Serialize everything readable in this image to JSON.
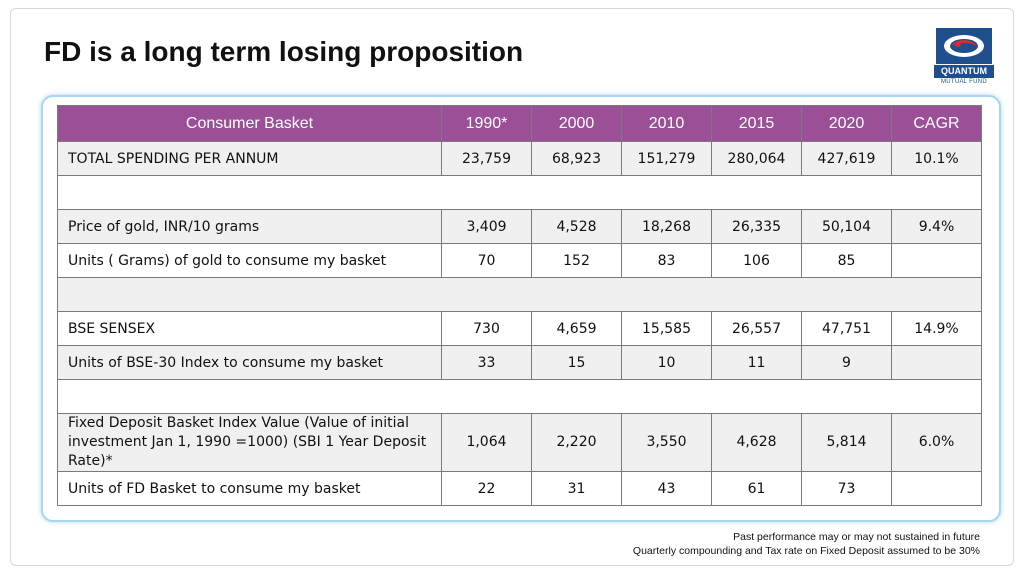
{
  "slide": {
    "title": "FD is a long term losing proposition"
  },
  "logo": {
    "word": "QUANTUM",
    "sub": "MUTUAL FUND"
  },
  "table": {
    "headers": [
      "Consumer Basket",
      "1990*",
      "2000",
      "2010",
      "2015",
      "2020",
      "CAGR"
    ],
    "rows": [
      {
        "label": "TOTAL SPENDING PER ANNUM",
        "values": [
          "23,759",
          "68,923",
          "151,279",
          "280,064",
          "427,619",
          "10.1%"
        ]
      },
      {
        "label": "",
        "values": []
      },
      {
        "label": "Price of gold, INR/10 grams",
        "values": [
          "3,409",
          "4,528",
          "18,268",
          "26,335",
          "50,104",
          "9.4%"
        ]
      },
      {
        "label": "Units ( Grams) of gold to consume my basket",
        "values": [
          "70",
          "152",
          "83",
          "106",
          "85",
          ""
        ]
      },
      {
        "label": "",
        "values": []
      },
      {
        "label": "BSE SENSEX",
        "values": [
          "730",
          "4,659",
          "15,585",
          "26,557",
          "47,751",
          "14.9%"
        ]
      },
      {
        "label": "Units  of BSE-30 Index to consume my basket",
        "values": [
          "33",
          "15",
          "10",
          "11",
          "9",
          ""
        ]
      },
      {
        "label": "",
        "values": []
      },
      {
        "label": "Fixed Deposit Basket Index Value (Value of initial investment Jan 1, 1990 =1000) (SBI 1 Year Deposit Rate)*",
        "values": [
          "1,064",
          "2,220",
          "3,550",
          "4,628",
          "5,814",
          "6.0%"
        ]
      },
      {
        "label": "Units  of FD Basket to consume my basket",
        "values": [
          "22",
          "31",
          "43",
          "61",
          "73",
          ""
        ]
      }
    ]
  },
  "footnotes": {
    "line1": "Past performance may or may not sustained in future",
    "line2": "Quarterly compounding and Tax rate on Fixed Deposit assumed to be 30%"
  },
  "colors": {
    "header_bg": "#9b4f96",
    "shaded_row": "#f0f0f0",
    "card_border": "#a7d6ef",
    "logo_blue": "#1f4e8c",
    "logo_red": "#e0282e"
  }
}
